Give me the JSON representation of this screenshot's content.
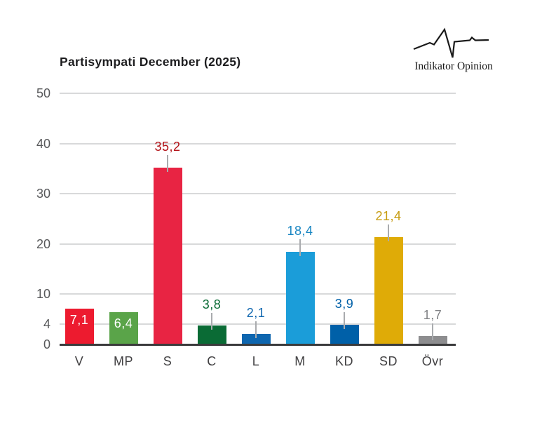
{
  "title": "Partisympati December (2025)",
  "logo": {
    "text": "Indikator Opinion"
  },
  "colors": {
    "background": "#ffffff",
    "gridline": "#d8d9da",
    "baseline": "#3b3b3c",
    "stem": "#a9abae",
    "y_tick_label": "#58595b",
    "x_axis_label": "#414042",
    "title_text": "#1d1d1f"
  },
  "chart_data": {
    "type": "bar",
    "title": "Partisympati December (2025)",
    "categories": [
      "V",
      "MP",
      "S",
      "C",
      "L",
      "M",
      "KD",
      "SD",
      "Övr"
    ],
    "values": [
      7.1,
      6.4,
      35.2,
      3.8,
      2.1,
      18.4,
      3.9,
      21.4,
      1.7
    ],
    "display_values": [
      "7,1",
      "6,4",
      "35,2",
      "3,8",
      "2,1",
      "18,4",
      "3,9",
      "21,4",
      "1,7"
    ],
    "bar_colors": [
      "#ed1b2f",
      "#5aa449",
      "#e82443",
      "#0a6b35",
      "#0e66af",
      "#1b9dd9",
      "#0060a8",
      "#dfab07",
      "#8d8d8f"
    ],
    "value_label_colors": [
      "#ffffff",
      "#ffffff",
      "#b21117",
      "#0a6b35",
      "#0e66af",
      "#1a86c2",
      "#0060a8",
      "#c69c11",
      "#808285"
    ],
    "value_label_inside": [
      true,
      true,
      false,
      false,
      false,
      false,
      false,
      false,
      false
    ],
    "xlabel": "",
    "ylabel": "",
    "ylim": [
      0,
      50
    ],
    "yticks": [
      0,
      4,
      10,
      20,
      30,
      40,
      50
    ],
    "grid": true,
    "threshold_value": 4,
    "legend": null
  }
}
